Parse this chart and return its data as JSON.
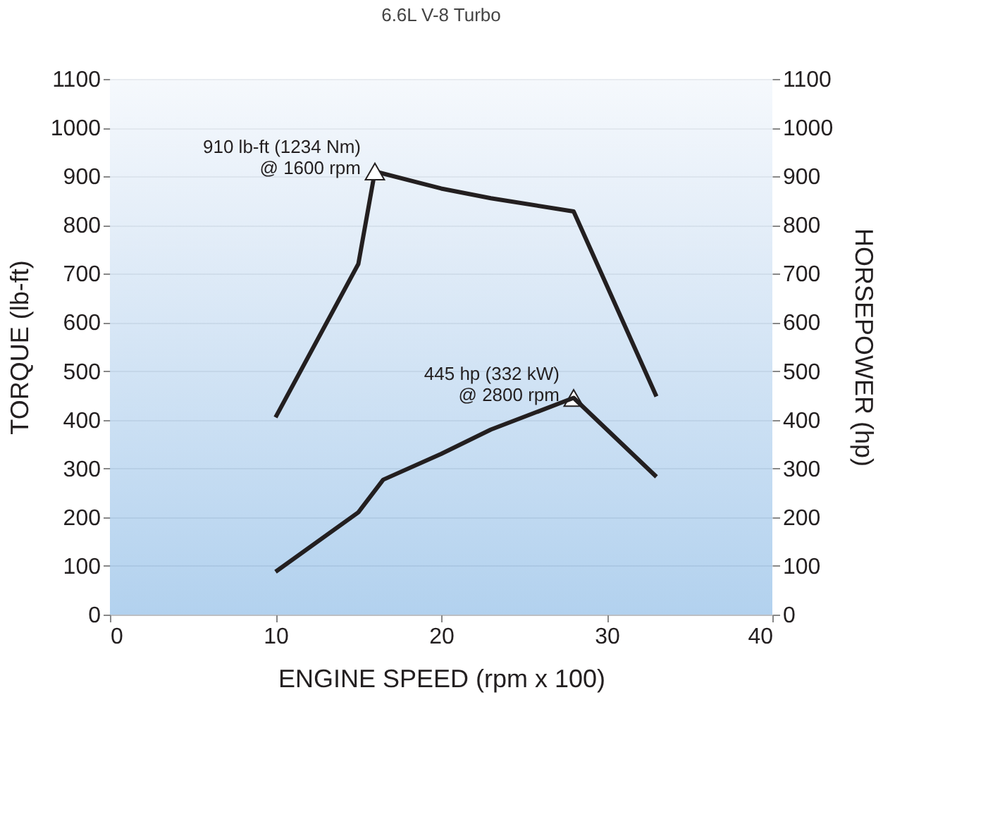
{
  "chart_data": {
    "type": "line",
    "title": "6.6L V-8 Turbo",
    "xlabel": "ENGINE SPEED (rpm x 100)",
    "ylabel": "TORQUE (lb-ft)",
    "y2label": "HORSEPOWER (hp)",
    "series": [
      {
        "type": "line",
        "color": "#231f20",
        "x": [
          10,
          15,
          16,
          20,
          23,
          28,
          33
        ],
        "values": [
          405,
          720,
          910,
          875,
          855,
          828,
          448
        ]
      },
      {
        "type": "line",
        "axis": "y2",
        "color": "#231f20",
        "x": [
          10,
          15,
          16.5,
          20,
          23,
          28,
          33
        ],
        "values": [
          88,
          210,
          277,
          330,
          380,
          445,
          283
        ]
      },
      {
        "type": "scatter",
        "marker": "triangle",
        "color": "#ffffff",
        "x": [
          16,
          28
        ],
        "values": [
          910,
          445
        ]
      }
    ],
    "xlim": [
      0,
      40
    ],
    "xticks": [
      0,
      10,
      20,
      30,
      40
    ],
    "ylim": [
      0,
      1100
    ],
    "yticks": [
      0,
      100,
      200,
      300,
      400,
      500,
      600,
      700,
      800,
      900,
      1000,
      1100
    ],
    "y2lim": [
      0,
      1100
    ],
    "y2ticks": [
      0,
      100,
      200,
      300,
      400,
      500,
      600,
      700,
      800,
      900,
      1000,
      1100
    ],
    "annotations": [
      {
        "text": "910 lb-ft (1234 Nm)\n@ 1600 rpm",
        "x": 16,
        "y": 910
      },
      {
        "text": "445 hp (332 kW)\n@ 2800 rpm",
        "x": 28,
        "y": 445
      }
    ],
    "grid": "y",
    "marker": "none",
    "line_style": "solid"
  }
}
